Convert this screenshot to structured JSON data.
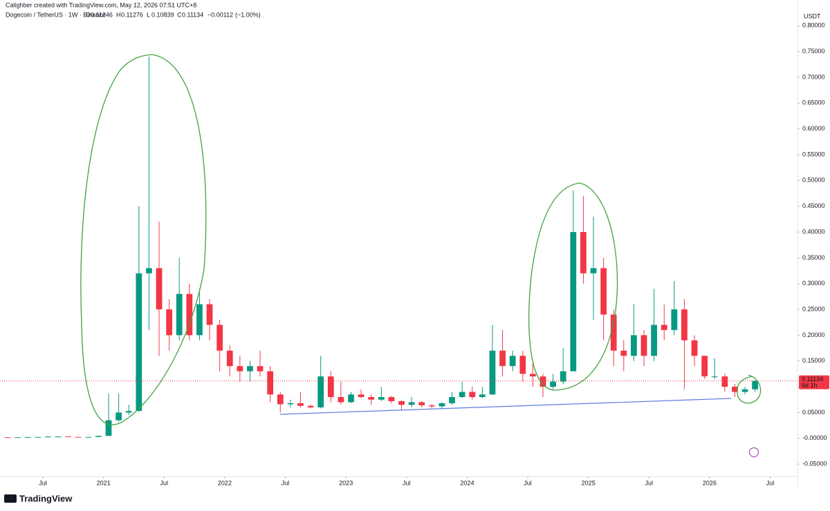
{
  "header": {
    "credit": "Calighber created with TradingView.com, May 12, 2026 07:51 UTC+8",
    "symbol": "Dogecoin / TetherUS · 1W · Binance",
    "ohlc_labels": [
      "O",
      "H",
      "L",
      "C"
    ],
    "open": 0.11246,
    "high": 0.11276,
    "low": 0.10839,
    "close": 0.11134,
    "change": {
      "value": -0.00112,
      "label": "−0.00112"
    },
    "change_pct": {
      "value": -1.0,
      "label": "(−1.00%)"
    }
  },
  "chart_data": {
    "type": "candlestick",
    "currency": "USDT",
    "countdown": "6d 1h",
    "up_color": "#089981",
    "down_color": "#f23645",
    "grid": false,
    "x": [
      2,
      3,
      4,
      5,
      6,
      7,
      8,
      9,
      10,
      11,
      12,
      13,
      14,
      15,
      16,
      17,
      18,
      19,
      20,
      21,
      22,
      23,
      24,
      25,
      26,
      27,
      28,
      29,
      30,
      31,
      32,
      33,
      34,
      35,
      36,
      37,
      38,
      39,
      40,
      41,
      42,
      43,
      44,
      45,
      46,
      47,
      48,
      49,
      50,
      51,
      52,
      53,
      54,
      55,
      56,
      57,
      58,
      59,
      60,
      61,
      62,
      63,
      64,
      65,
      66,
      67,
      68,
      69,
      70,
      71,
      72,
      73,
      74,
      75,
      76
    ],
    "open": [
      0.002,
      0.0018,
      0.002,
      0.0025,
      0.0026,
      0.0033,
      0.0035,
      0.0027,
      0.0026,
      0.0026,
      0.0047,
      0.035,
      0.05,
      0.053,
      0.32,
      0.33,
      0.25,
      0.2,
      0.28,
      0.2,
      0.26,
      0.22,
      0.17,
      0.14,
      0.13,
      0.14,
      0.13,
      0.085,
      0.066,
      0.068,
      0.063,
      0.06,
      0.12,
      0.08,
      0.07,
      0.085,
      0.08,
      0.075,
      0.08,
      0.072,
      0.065,
      0.07,
      0.064,
      0.062,
      0.068,
      0.08,
      0.09,
      0.08,
      0.085,
      0.17,
      0.14,
      0.16,
      0.125,
      0.12,
      0.1,
      0.11,
      0.13,
      0.4,
      0.32,
      0.33,
      0.24,
      0.17,
      0.16,
      0.2,
      0.16,
      0.22,
      0.21,
      0.25,
      0.19,
      0.16,
      0.12,
      0.12,
      0.1,
      0.09,
      0.095
    ],
    "high": [
      0.0022,
      0.0023,
      0.0027,
      0.0028,
      0.0041,
      0.0037,
      0.0036,
      0.0028,
      0.003,
      0.005,
      0.087,
      0.087,
      0.065,
      0.45,
      0.74,
      0.42,
      0.27,
      0.35,
      0.3,
      0.29,
      0.27,
      0.23,
      0.18,
      0.16,
      0.15,
      0.17,
      0.14,
      0.09,
      0.075,
      0.09,
      0.066,
      0.16,
      0.13,
      0.11,
      0.09,
      0.095,
      0.085,
      0.1,
      0.082,
      0.074,
      0.08,
      0.072,
      0.066,
      0.07,
      0.09,
      0.11,
      0.1,
      0.1,
      0.22,
      0.21,
      0.17,
      0.17,
      0.145,
      0.125,
      0.125,
      0.175,
      0.48,
      0.47,
      0.43,
      0.35,
      0.25,
      0.19,
      0.26,
      0.21,
      0.29,
      0.26,
      0.305,
      0.27,
      0.2,
      0.16,
      0.155,
      0.125,
      0.105,
      0.1,
      0.1128
    ],
    "low": [
      0.0015,
      0.0017,
      0.0019,
      0.0024,
      0.0025,
      0.003,
      0.0025,
      0.0025,
      0.0025,
      0.0025,
      0.0046,
      0.032,
      0.045,
      0.052,
      0.21,
      0.16,
      0.17,
      0.19,
      0.19,
      0.19,
      0.19,
      0.13,
      0.12,
      0.11,
      0.11,
      0.12,
      0.07,
      0.05,
      0.06,
      0.06,
      0.058,
      0.058,
      0.07,
      0.065,
      0.068,
      0.078,
      0.065,
      0.072,
      0.068,
      0.055,
      0.06,
      0.06,
      0.058,
      0.057,
      0.065,
      0.078,
      0.075,
      0.078,
      0.084,
      0.12,
      0.13,
      0.11,
      0.1,
      0.08,
      0.095,
      0.105,
      0.13,
      0.3,
      0.23,
      0.19,
      0.14,
      0.13,
      0.15,
      0.14,
      0.15,
      0.19,
      0.2,
      0.095,
      0.14,
      0.115,
      0.115,
      0.09,
      0.08,
      0.085,
      0.09
    ],
    "close": [
      0.0018,
      0.002,
      0.0025,
      0.0026,
      0.0033,
      0.0035,
      0.0027,
      0.0026,
      0.0026,
      0.0047,
      0.035,
      0.05,
      0.053,
      0.32,
      0.33,
      0.25,
      0.2,
      0.28,
      0.2,
      0.26,
      0.22,
      0.17,
      0.14,
      0.13,
      0.14,
      0.13,
      0.085,
      0.066,
      0.068,
      0.063,
      0.06,
      0.12,
      0.08,
      0.07,
      0.085,
      0.08,
      0.075,
      0.08,
      0.072,
      0.065,
      0.07,
      0.064,
      0.062,
      0.068,
      0.08,
      0.09,
      0.08,
      0.085,
      0.17,
      0.14,
      0.16,
      0.125,
      0.12,
      0.1,
      0.11,
      0.13,
      0.4,
      0.32,
      0.33,
      0.24,
      0.17,
      0.16,
      0.2,
      0.16,
      0.22,
      0.21,
      0.25,
      0.19,
      0.16,
      0.12,
      0.12,
      0.1,
      0.09,
      0.095,
      0.11134
    ],
    "xlim": [
      1.75,
      80.7
    ],
    "xticks": [
      {
        "value": 6,
        "label": "Jul"
      },
      {
        "value": 12,
        "label": "2021"
      },
      {
        "value": 18,
        "label": "Jul"
      },
      {
        "value": 24,
        "label": "2022"
      },
      {
        "value": 30,
        "label": "Jul"
      },
      {
        "value": 36,
        "label": "2023"
      },
      {
        "value": 42,
        "label": "Jul"
      },
      {
        "value": 48,
        "label": "2024"
      },
      {
        "value": 54,
        "label": "Jul"
      },
      {
        "value": 60,
        "label": "2025"
      },
      {
        "value": 66,
        "label": "Jul"
      },
      {
        "value": 72,
        "label": "2026"
      },
      {
        "value": 78,
        "label": "Jul"
      }
    ],
    "ylim": [
      -0.074,
      0.85
    ],
    "yticks": [
      {
        "value": 0.8,
        "label": "0.80000"
      },
      {
        "value": 0.75,
        "label": "0.75000"
      },
      {
        "value": 0.7,
        "label": "0.70000"
      },
      {
        "value": 0.65,
        "label": "0.65000"
      },
      {
        "value": 0.6,
        "label": "0.60000"
      },
      {
        "value": 0.55,
        "label": "0.55000"
      },
      {
        "value": 0.5,
        "label": "0.50000"
      },
      {
        "value": 0.45,
        "label": "0.45000"
      },
      {
        "value": 0.4,
        "label": "0.40000"
      },
      {
        "value": 0.35,
        "label": "0.35000"
      },
      {
        "value": 0.3,
        "label": "0.30000"
      },
      {
        "value": 0.25,
        "label": "0.25000"
      },
      {
        "value": 0.2,
        "label": "0.20000"
      },
      {
        "value": 0.15,
        "label": "0.15000"
      },
      {
        "value": 0.1,
        "label": "0.10000"
      },
      {
        "value": 0.05,
        "label": "0.05000"
      },
      {
        "value": 0,
        "label": "-0.00000"
      },
      {
        "value": -0.05,
        "label": "-0.05000"
      }
    ]
  },
  "footer": {
    "brand": "TradingView"
  }
}
